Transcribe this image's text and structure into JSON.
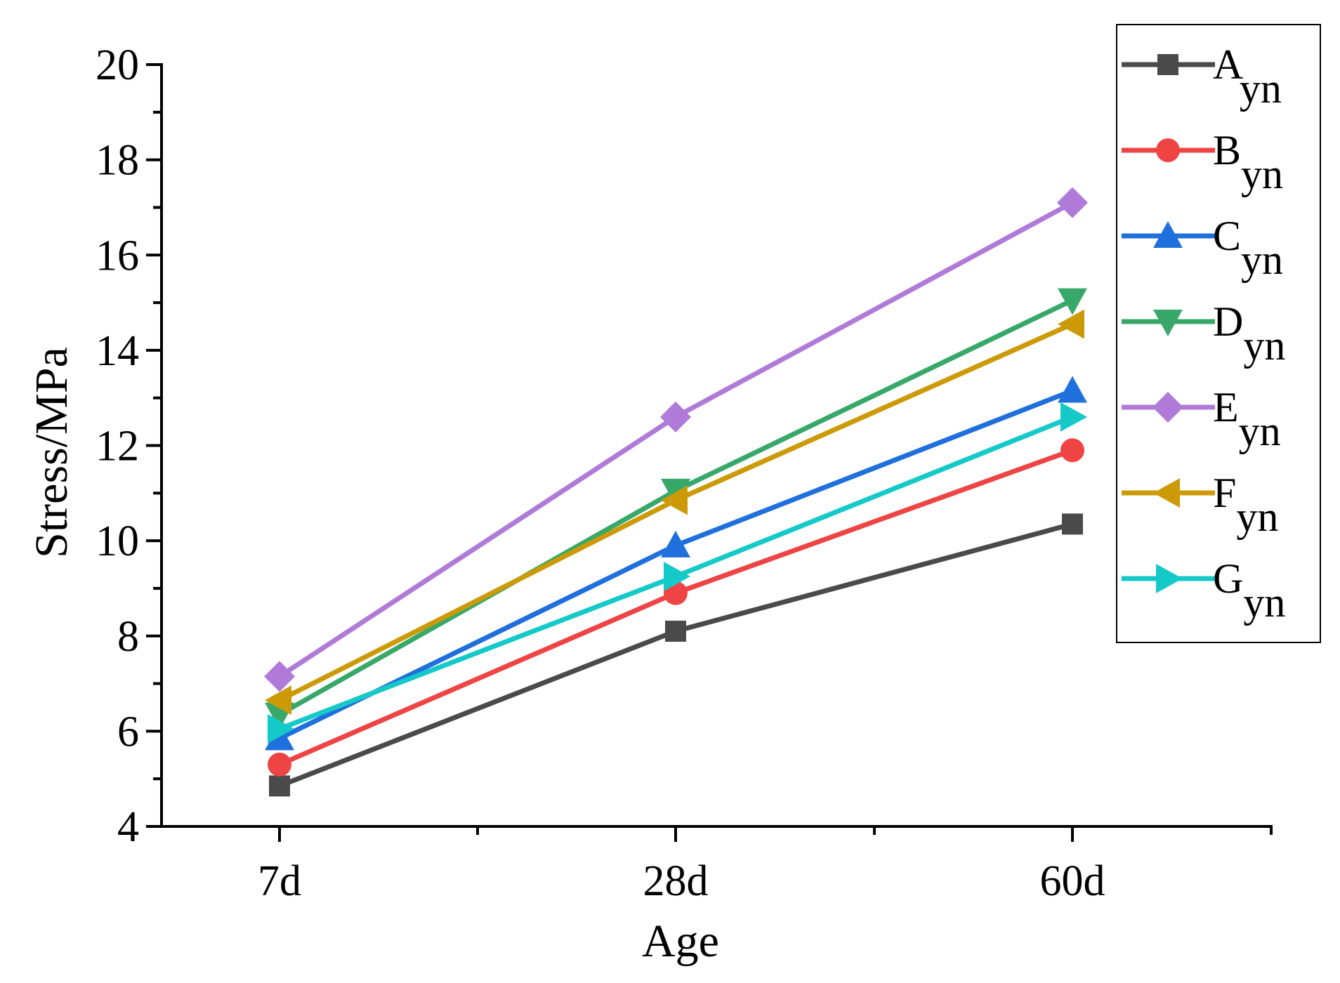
{
  "chart_data": {
    "type": "line",
    "title": "",
    "xlabel": "Age",
    "ylabel": "Stress/MPa",
    "categories": [
      "7d",
      "28d",
      "60d"
    ],
    "ylim": [
      4,
      20
    ],
    "yticks": [
      4,
      6,
      8,
      10,
      12,
      14,
      16,
      18,
      20
    ],
    "grid": false,
    "legend_position": "top-right",
    "series": [
      {
        "name": "A",
        "subscript": "yn",
        "marker": "square",
        "color": "#4a4a4a",
        "values": [
          4.85,
          8.1,
          10.35
        ]
      },
      {
        "name": "B",
        "subscript": "yn",
        "marker": "circle",
        "color": "#ee4444",
        "values": [
          5.3,
          8.9,
          11.9
        ]
      },
      {
        "name": "C",
        "subscript": "yn",
        "marker": "triangle-up",
        "color": "#1f6fdc",
        "values": [
          5.85,
          9.9,
          13.15
        ]
      },
      {
        "name": "D",
        "subscript": "yn",
        "marker": "triangle-down",
        "color": "#38a86a",
        "values": [
          6.35,
          11.05,
          15.05
        ]
      },
      {
        "name": "E",
        "subscript": "yn",
        "marker": "diamond",
        "color": "#b07ad8",
        "values": [
          7.15,
          12.6,
          17.1
        ]
      },
      {
        "name": "F",
        "subscript": "yn",
        "marker": "triangle-left",
        "color": "#cc9a06",
        "values": [
          6.65,
          10.85,
          14.55
        ]
      },
      {
        "name": "G",
        "subscript": "yn",
        "marker": "triangle-right",
        "color": "#16c9c9",
        "values": [
          6.05,
          9.25,
          12.6
        ]
      }
    ]
  }
}
